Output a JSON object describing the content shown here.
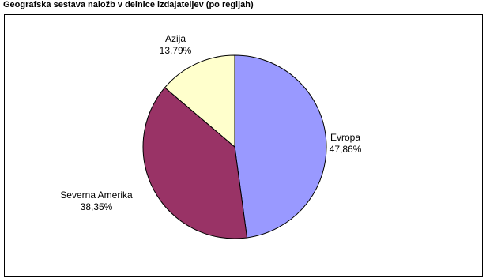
{
  "chart_data": {
    "type": "pie",
    "title": "Geografska sestava naložb v delnice izdajateljev (po regijah)",
    "categories": [
      "Evropa",
      "Severna Amerika",
      "Azija"
    ],
    "values": [
      47.86,
      38.35,
      13.79
    ],
    "value_labels": [
      "47,86%",
      "38,35%",
      "13,79%"
    ],
    "colors": [
      "#9999ff",
      "#993366",
      "#ffffcc"
    ]
  }
}
